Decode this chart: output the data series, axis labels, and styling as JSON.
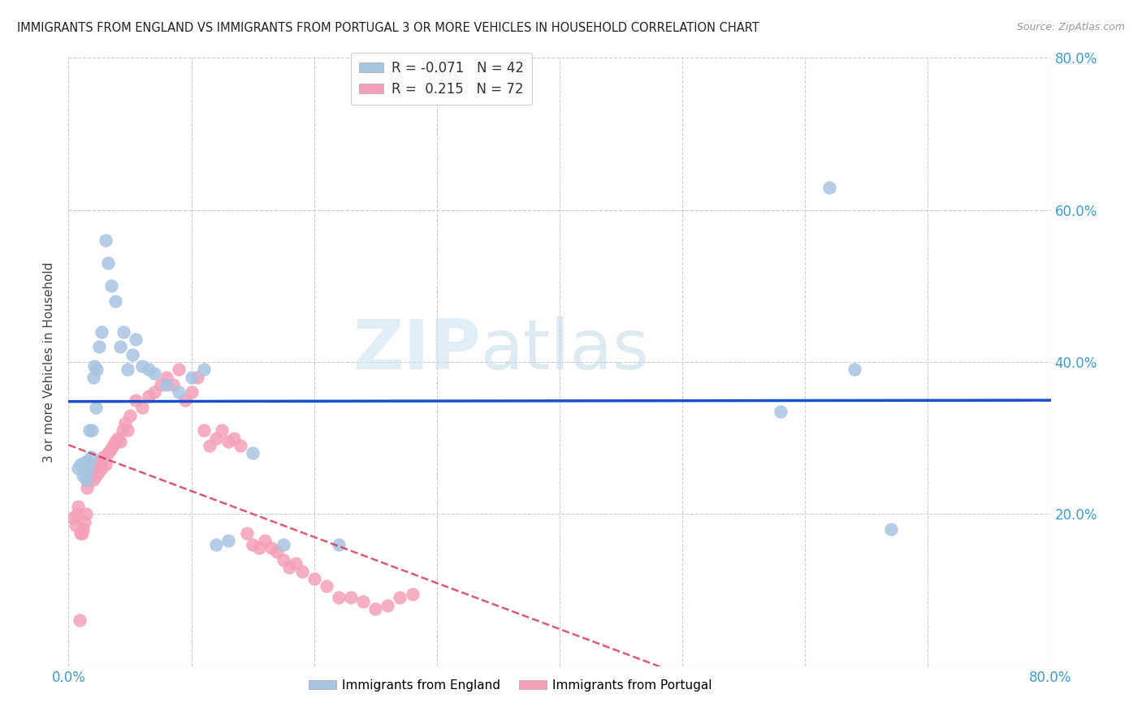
{
  "title": "IMMIGRANTS FROM ENGLAND VS IMMIGRANTS FROM PORTUGAL 3 OR MORE VEHICLES IN HOUSEHOLD CORRELATION CHART",
  "source": "Source: ZipAtlas.com",
  "ylabel": "3 or more Vehicles in Household",
  "xlim": [
    0.0,
    0.8
  ],
  "ylim": [
    0.0,
    0.8
  ],
  "xtick_positions": [
    0.0,
    0.1,
    0.2,
    0.3,
    0.4,
    0.5,
    0.6,
    0.7,
    0.8
  ],
  "xtick_labels": [
    "0.0%",
    "",
    "",
    "",
    "",
    "",
    "",
    "",
    "80.0%"
  ],
  "ytick_positions": [
    0.0,
    0.2,
    0.4,
    0.6,
    0.8
  ],
  "ytick_labels": [
    "",
    "20.0%",
    "40.0%",
    "60.0%",
    "80.0%"
  ],
  "england_R": -0.071,
  "england_N": 42,
  "portugal_R": 0.215,
  "portugal_N": 72,
  "england_color": "#a8c4e0",
  "portugal_color": "#f4a0b8",
  "england_line_color": "#1a4fcc",
  "portugal_line_color": "#cc3355",
  "watermark_zip": "ZIP",
  "watermark_atlas": "atlas",
  "england_x": [
    0.008,
    0.01,
    0.012,
    0.013,
    0.014,
    0.015,
    0.015,
    0.016,
    0.017,
    0.018,
    0.019,
    0.02,
    0.021,
    0.022,
    0.023,
    0.025,
    0.027,
    0.03,
    0.032,
    0.035,
    0.038,
    0.042,
    0.045,
    0.048,
    0.052,
    0.055,
    0.06,
    0.065,
    0.07,
    0.08,
    0.09,
    0.1,
    0.11,
    0.12,
    0.13,
    0.15,
    0.175,
    0.22,
    0.58,
    0.62,
    0.64,
    0.67
  ],
  "england_y": [
    0.26,
    0.265,
    0.25,
    0.268,
    0.245,
    0.255,
    0.27,
    0.265,
    0.31,
    0.275,
    0.31,
    0.38,
    0.395,
    0.34,
    0.39,
    0.42,
    0.44,
    0.56,
    0.53,
    0.5,
    0.48,
    0.42,
    0.44,
    0.39,
    0.41,
    0.43,
    0.395,
    0.39,
    0.385,
    0.37,
    0.36,
    0.38,
    0.39,
    0.16,
    0.165,
    0.28,
    0.16,
    0.16,
    0.335,
    0.63,
    0.39,
    0.18
  ],
  "portugal_x": [
    0.004,
    0.006,
    0.007,
    0.008,
    0.009,
    0.01,
    0.011,
    0.012,
    0.013,
    0.014,
    0.015,
    0.016,
    0.017,
    0.018,
    0.019,
    0.02,
    0.021,
    0.022,
    0.023,
    0.024,
    0.025,
    0.026,
    0.027,
    0.028,
    0.03,
    0.032,
    0.034,
    0.036,
    0.038,
    0.04,
    0.042,
    0.044,
    0.046,
    0.048,
    0.05,
    0.055,
    0.06,
    0.065,
    0.07,
    0.075,
    0.08,
    0.085,
    0.09,
    0.095,
    0.1,
    0.105,
    0.11,
    0.115,
    0.12,
    0.125,
    0.13,
    0.135,
    0.14,
    0.145,
    0.15,
    0.155,
    0.16,
    0.165,
    0.17,
    0.175,
    0.18,
    0.185,
    0.19,
    0.2,
    0.21,
    0.22,
    0.23,
    0.24,
    0.25,
    0.26,
    0.27,
    0.28
  ],
  "portugal_y": [
    0.195,
    0.185,
    0.2,
    0.21,
    0.06,
    0.175,
    0.175,
    0.18,
    0.19,
    0.2,
    0.235,
    0.245,
    0.25,
    0.255,
    0.26,
    0.245,
    0.26,
    0.25,
    0.265,
    0.255,
    0.265,
    0.27,
    0.26,
    0.275,
    0.265,
    0.28,
    0.285,
    0.29,
    0.295,
    0.3,
    0.295,
    0.31,
    0.32,
    0.31,
    0.33,
    0.35,
    0.34,
    0.355,
    0.36,
    0.37,
    0.38,
    0.37,
    0.39,
    0.35,
    0.36,
    0.38,
    0.31,
    0.29,
    0.3,
    0.31,
    0.295,
    0.3,
    0.29,
    0.175,
    0.16,
    0.155,
    0.165,
    0.155,
    0.15,
    0.14,
    0.13,
    0.135,
    0.125,
    0.115,
    0.105,
    0.09,
    0.09,
    0.085,
    0.075,
    0.08,
    0.09,
    0.095
  ]
}
